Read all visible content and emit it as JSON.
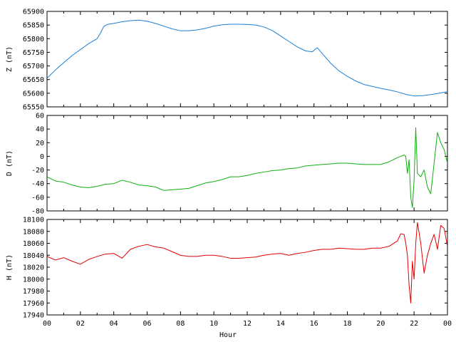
{
  "chart_data": [
    {
      "type": "line",
      "id": "z",
      "ylabel": "Z (nT)",
      "ylim": [
        65550,
        65900
      ],
      "yticks": [
        65550,
        65600,
        65650,
        65700,
        65750,
        65800,
        65850,
        65900
      ],
      "xlim": [
        0,
        24
      ],
      "color": "#1a7fd6",
      "series": [
        {
          "x": [
            0,
            0.5,
            1,
            1.5,
            2,
            2.5,
            3,
            3.2,
            3.4,
            3.6,
            4,
            4.5,
            5,
            5.5,
            6,
            6.5,
            7,
            7.5,
            8,
            8.5,
            9,
            9.5,
            10,
            10.5,
            11,
            11.5,
            12,
            12.5,
            13,
            13.5,
            14,
            14.5,
            15,
            15.5,
            15.9,
            16.2,
            16.5,
            17,
            17.5,
            18,
            18.5,
            19,
            19.5,
            20,
            20.5,
            21,
            21.5,
            22,
            22.5,
            23,
            23.5,
            24
          ],
          "y": [
            65655,
            65685,
            65712,
            65738,
            65760,
            65782,
            65800,
            65820,
            65845,
            65852,
            65856,
            65862,
            65866,
            65868,
            65864,
            65856,
            65846,
            65836,
            65829,
            65829,
            65832,
            65838,
            65846,
            65851,
            65853,
            65853,
            65852,
            65850,
            65843,
            65830,
            65810,
            65790,
            65770,
            65755,
            65752,
            65767,
            65745,
            65710,
            65682,
            65662,
            65645,
            65632,
            65625,
            65618,
            65612,
            65605,
            65596,
            65590,
            65591,
            65595,
            65600,
            65606
          ]
        }
      ]
    },
    {
      "type": "line",
      "id": "d",
      "ylabel": "D (nT)",
      "ylim": [
        -80,
        60
      ],
      "yticks": [
        -80,
        -60,
        -40,
        -20,
        0,
        20,
        40,
        60
      ],
      "xlim": [
        0,
        24
      ],
      "color": "#10b010",
      "series": [
        {
          "x": [
            0,
            0.5,
            1,
            1.5,
            2,
            2.5,
            3,
            3.5,
            4,
            4.5,
            5,
            5.5,
            6,
            6.5,
            7,
            7.5,
            8,
            8.5,
            9,
            9.5,
            10,
            10.5,
            11,
            11.5,
            12,
            12.5,
            13,
            13.5,
            14,
            14.5,
            15,
            15.5,
            16,
            16.5,
            17,
            17.5,
            18,
            18.5,
            19,
            19.5,
            20,
            20.5,
            21,
            21.2,
            21.4,
            21.5,
            21.6,
            21.7,
            21.8,
            21.9,
            22,
            22.1,
            22.2,
            22.4,
            22.6,
            22.8,
            23,
            23.2,
            23.4,
            23.6,
            23.8,
            24
          ],
          "y": [
            -30,
            -36,
            -38,
            -42,
            -45,
            -46,
            -44,
            -41,
            -40,
            -35,
            -38,
            -42,
            -43,
            -45,
            -50,
            -49,
            -48,
            -47,
            -43,
            -39,
            -37,
            -34,
            -30,
            -30,
            -28,
            -25,
            -23,
            -21,
            -20,
            -18,
            -17,
            -14,
            -13,
            -12,
            -11,
            -10,
            -10,
            -11,
            -12,
            -12,
            -12,
            -8,
            -2,
            0,
            2,
            0,
            -25,
            -5,
            -60,
            -75,
            -35,
            42,
            -25,
            -30,
            -20,
            -45,
            -55,
            -10,
            35,
            20,
            10,
            -10
          ]
        }
      ]
    },
    {
      "type": "line",
      "id": "h",
      "ylabel": "H (nT)",
      "ylim": [
        17940,
        18100
      ],
      "yticks": [
        17940,
        17960,
        17980,
        18000,
        18020,
        18040,
        18060,
        18080,
        18100
      ],
      "xlim": [
        0,
        24
      ],
      "xticks": [
        "00",
        "02",
        "04",
        "06",
        "08",
        "10",
        "12",
        "14",
        "16",
        "18",
        "20",
        "22",
        "00"
      ],
      "xlabel": "Hour",
      "color": "#e00000",
      "series": [
        {
          "x": [
            0,
            0.5,
            1,
            1.5,
            2,
            2.5,
            3,
            3.5,
            4,
            4.5,
            5,
            5.5,
            6,
            6.5,
            7,
            7.5,
            8,
            8.5,
            9,
            9.5,
            10,
            10.5,
            11,
            11.5,
            12,
            12.5,
            13,
            13.5,
            14,
            14.5,
            15,
            15.5,
            16,
            16.5,
            17,
            17.5,
            18,
            18.5,
            19,
            19.5,
            20,
            20.5,
            21,
            21.2,
            21.4,
            21.5,
            21.6,
            21.7,
            21.8,
            21.9,
            22,
            22.1,
            22.2,
            22.4,
            22.6,
            22.8,
            23,
            23.2,
            23.4,
            23.6,
            23.8,
            24
          ],
          "y": [
            18038,
            18032,
            18036,
            18030,
            18025,
            18033,
            18038,
            18042,
            18043,
            18035,
            18050,
            18055,
            18058,
            18054,
            18052,
            18046,
            18040,
            18038,
            18038,
            18040,
            18040,
            18038,
            18035,
            18035,
            18036,
            18037,
            18040,
            18042,
            18043,
            18040,
            18043,
            18045,
            18048,
            18050,
            18050,
            18052,
            18051,
            18050,
            18050,
            18052,
            18052,
            18055,
            18064,
            18076,
            18075,
            18060,
            18040,
            17990,
            17960,
            18030,
            18000,
            18060,
            18095,
            18060,
            18010,
            18040,
            18060,
            18075,
            18050,
            18090,
            18085,
            18055
          ]
        }
      ]
    }
  ]
}
